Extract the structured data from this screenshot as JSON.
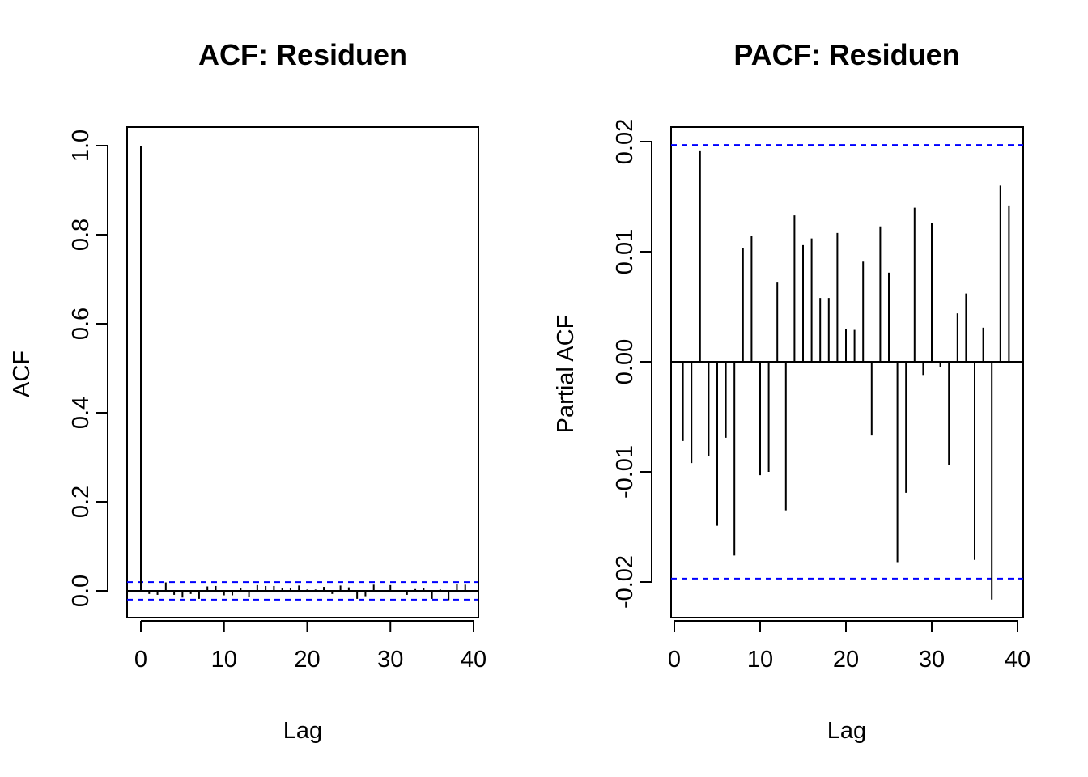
{
  "chart_data": [
    {
      "type": "bar",
      "title": "ACF: Residuen",
      "xlabel": "Lag",
      "ylabel": "ACF",
      "xlim": [
        0,
        40
      ],
      "ylim": [
        -0.06,
        1.0
      ],
      "x_ticks": [
        0,
        10,
        20,
        30,
        40
      ],
      "x_tick_labels": [
        "0",
        "10",
        "20",
        "30",
        "40"
      ],
      "y_ticks": [
        0.0,
        0.2,
        0.4,
        0.6,
        0.8,
        1.0
      ],
      "y_tick_labels": [
        "0.0",
        "0.2",
        "0.4",
        "0.6",
        "0.8",
        "1.0"
      ],
      "confidence_bound": 0.0197,
      "confidence_color": "#0000ff",
      "lags": [
        0,
        1,
        2,
        3,
        4,
        5,
        6,
        7,
        8,
        9,
        10,
        11,
        12,
        13,
        14,
        15,
        16,
        17,
        18,
        19,
        20,
        21,
        22,
        23,
        24,
        25,
        26,
        27,
        28,
        29,
        30,
        31,
        32,
        33,
        34,
        35,
        36,
        37,
        38,
        39,
        40
      ],
      "values": [
        1.0,
        -0.007,
        -0.009,
        0.019,
        -0.009,
        -0.015,
        -0.007,
        -0.018,
        0.01,
        0.011,
        -0.01,
        -0.01,
        0.007,
        -0.013,
        0.013,
        0.011,
        0.011,
        0.006,
        0.006,
        0.012,
        0.003,
        0.003,
        0.009,
        -0.007,
        0.012,
        0.008,
        -0.018,
        -0.012,
        0.014,
        -0.001,
        0.013,
        -0.001,
        -0.009,
        0.004,
        0.006,
        -0.018,
        0.003,
        -0.021,
        0.016,
        0.014,
        0.0
      ]
    },
    {
      "type": "bar",
      "title": "PACF: Residuen",
      "xlabel": "Lag",
      "ylabel": "Partial ACF",
      "xlim": [
        0,
        40
      ],
      "ylim": [
        -0.0231,
        0.0214
      ],
      "x_ticks": [
        0,
        10,
        20,
        30,
        40
      ],
      "x_tick_labels": [
        "0",
        "10",
        "20",
        "30",
        "40"
      ],
      "y_ticks": [
        -0.02,
        -0.01,
        0.0,
        0.01,
        0.02
      ],
      "y_tick_labels": [
        "-0.02",
        "-0.01",
        "0.00",
        "0.01",
        "0.02"
      ],
      "confidence_bound": 0.0197,
      "confidence_color": "#0000ff",
      "lags": [
        1,
        2,
        3,
        4,
        5,
        6,
        7,
        8,
        9,
        10,
        11,
        12,
        13,
        14,
        15,
        16,
        17,
        18,
        19,
        20,
        21,
        22,
        23,
        24,
        25,
        26,
        27,
        28,
        29,
        30,
        31,
        32,
        33,
        34,
        35,
        36,
        37,
        38,
        39
      ],
      "values": [
        -0.0072,
        -0.0092,
        0.0192,
        -0.0086,
        -0.0149,
        -0.0069,
        -0.0176,
        0.0103,
        0.0114,
        -0.0103,
        -0.01,
        0.0072,
        -0.0135,
        0.0133,
        0.0106,
        0.0112,
        0.0058,
        0.0058,
        0.0117,
        0.003,
        0.0029,
        0.0091,
        -0.0067,
        0.0123,
        0.0081,
        -0.0182,
        -0.0119,
        0.014,
        -0.0012,
        0.0126,
        -0.0005,
        -0.0094,
        0.0044,
        0.0062,
        -0.018,
        0.0031,
        -0.0216,
        0.016,
        0.0142
      ]
    }
  ]
}
